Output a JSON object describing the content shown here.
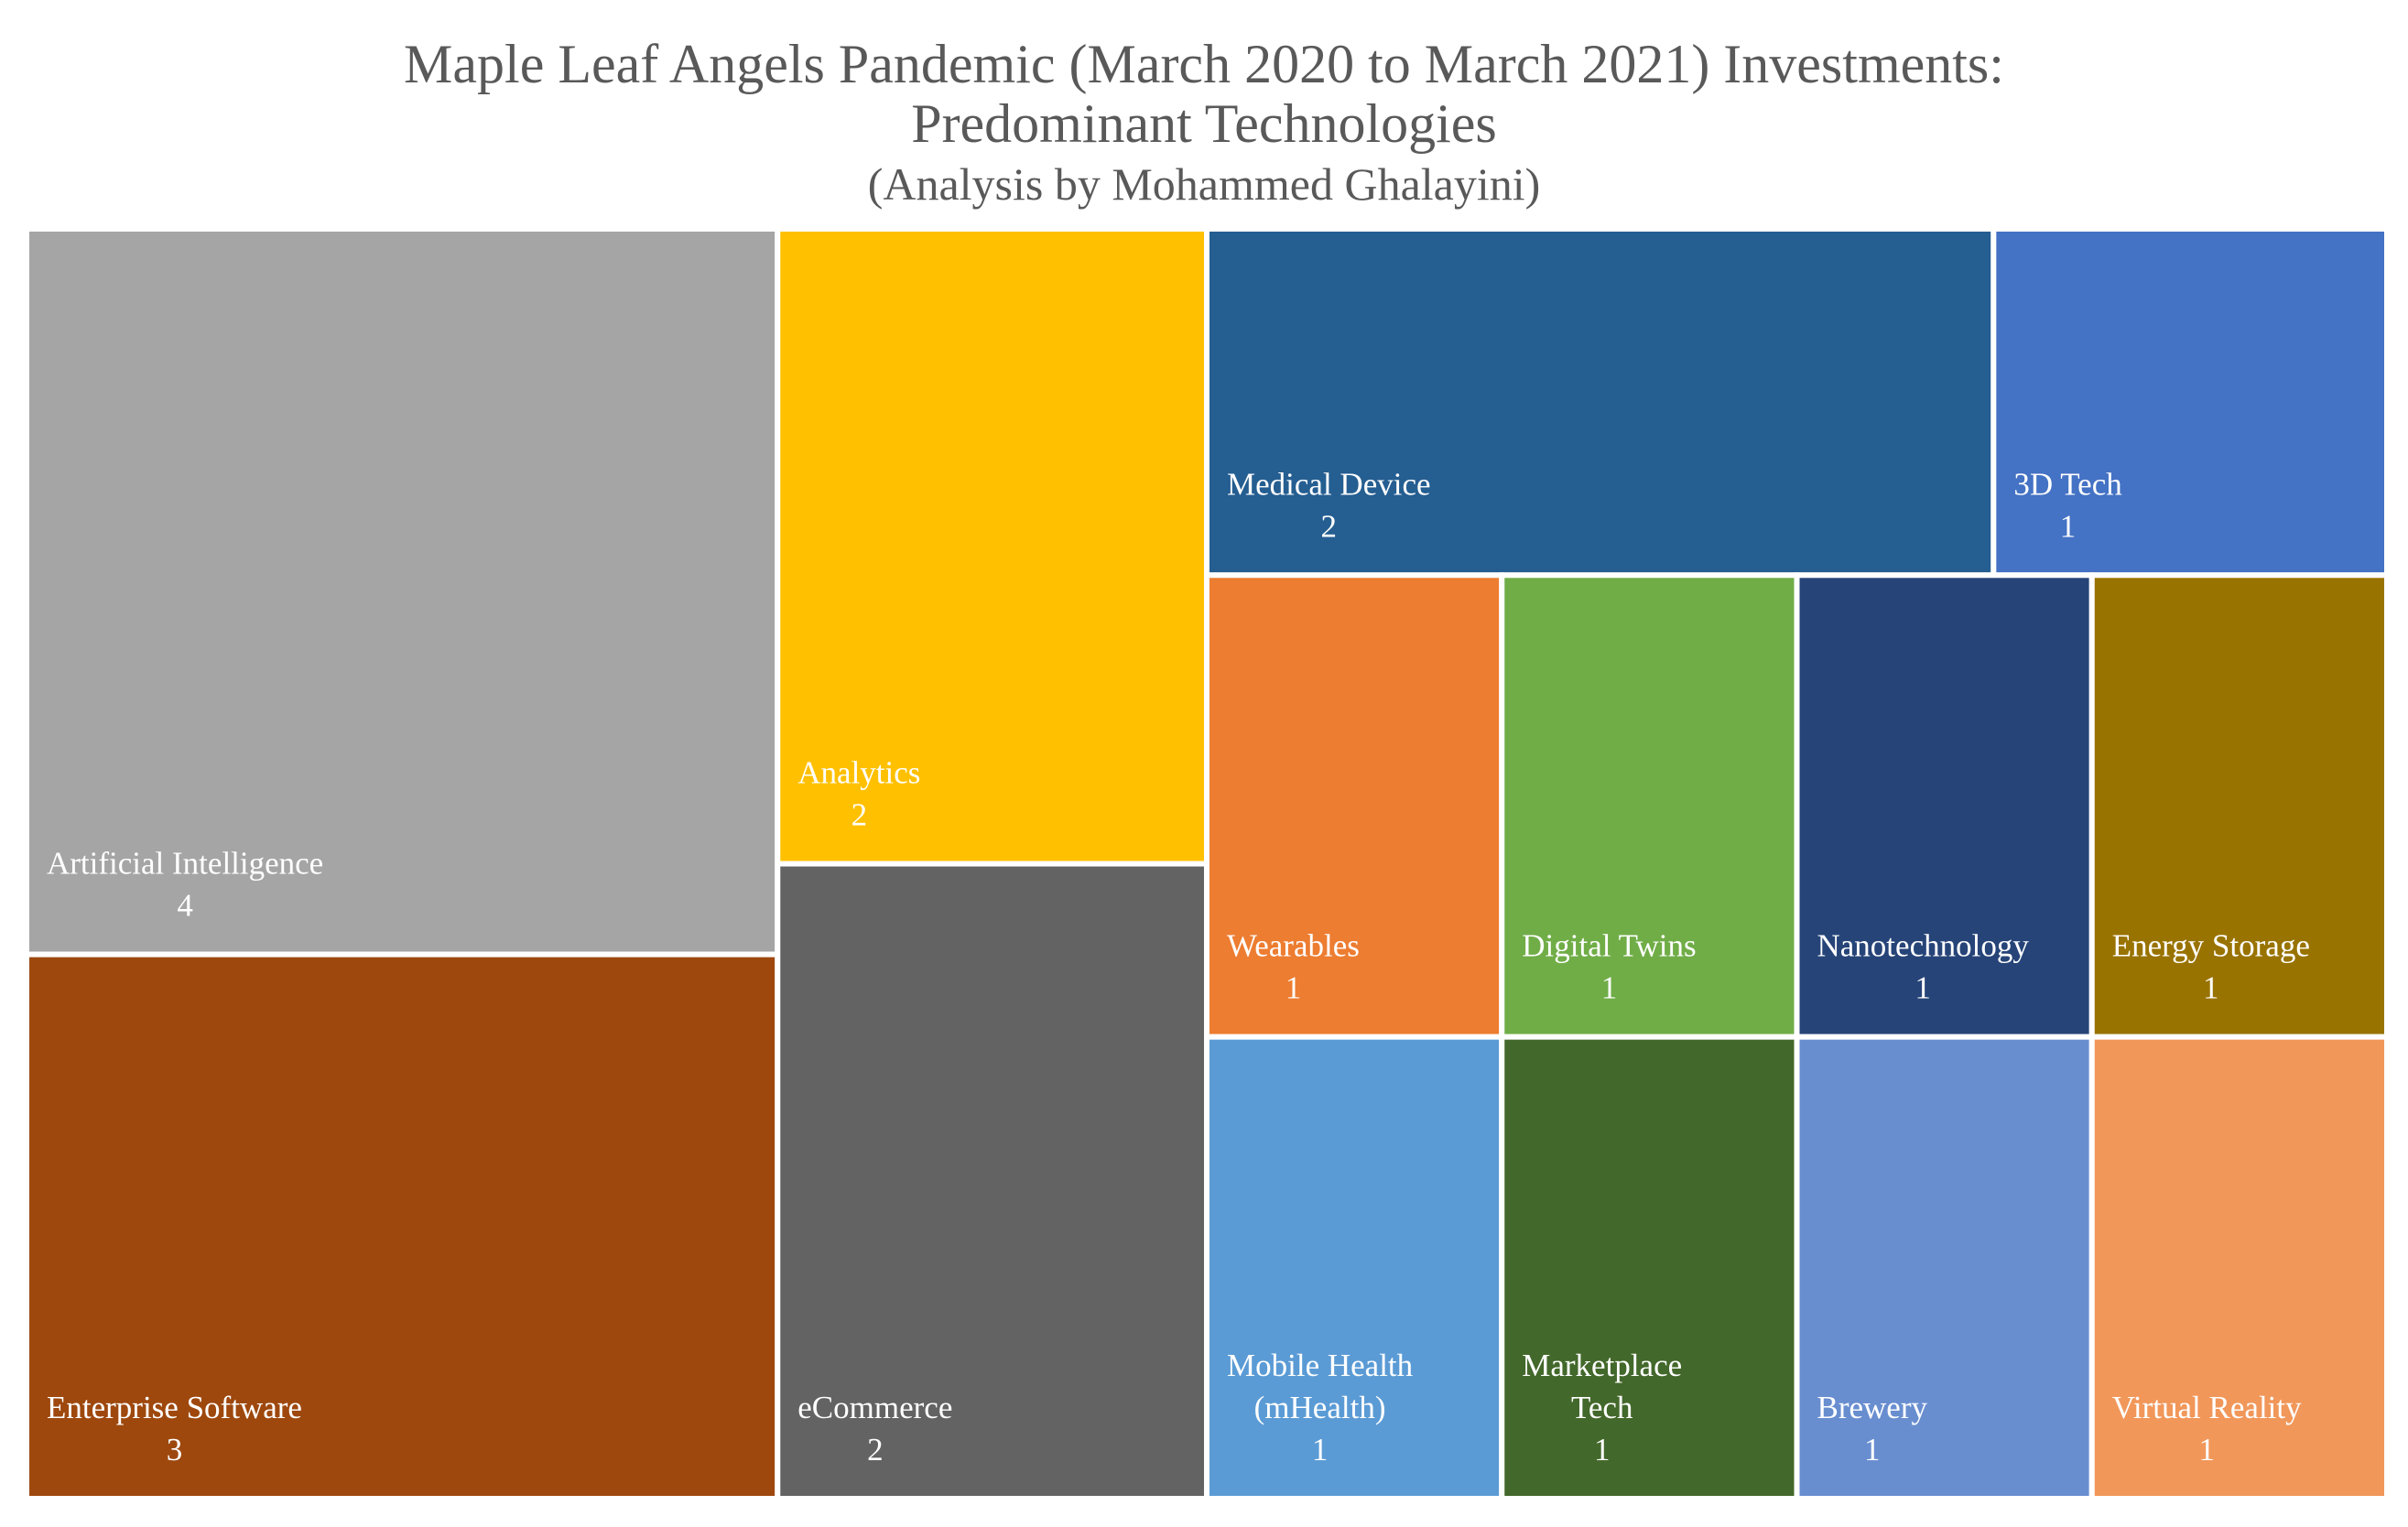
{
  "chart_data": {
    "type": "treemap",
    "title": "Maple Leaf Angels Pandemic (March 2020 to March 2021) Investments:",
    "title_line2": "Predominant Technologies",
    "subtitle": "(Analysis by Mohammed Ghalayini)",
    "items": [
      {
        "label": "Artificial Intelligence",
        "value": 4,
        "color": "#A5A5A5"
      },
      {
        "label": "Enterprise Software",
        "value": 3,
        "color": "#9E480E"
      },
      {
        "label": "Analytics",
        "value": 2,
        "color": "#FFC000"
      },
      {
        "label": "eCommerce",
        "value": 2,
        "color": "#636363"
      },
      {
        "label": "Medical Device",
        "value": 2,
        "color": "#255E91"
      },
      {
        "label": "3D Tech",
        "value": 1,
        "color": "#4472C4"
      },
      {
        "label": "Wearables",
        "value": 1,
        "color": "#ED7D31"
      },
      {
        "label": "Digital Twins",
        "value": 1,
        "color": "#70AD47"
      },
      {
        "label": "Nanotechnology",
        "value": 1,
        "color": "#264478"
      },
      {
        "label": "Energy Storage",
        "value": 1,
        "color": "#997300"
      },
      {
        "label": "Mobile Health (mHealth)",
        "label_lines": [
          "Mobile Health",
          "(mHealth)"
        ],
        "value": 1,
        "color": "#5B9BD5"
      },
      {
        "label": "Marketplace Tech",
        "label_lines": [
          "Marketplace",
          "Tech"
        ],
        "value": 1,
        "color": "#43682B"
      },
      {
        "label": "Brewery",
        "value": 1,
        "color": "#698ED0"
      },
      {
        "label": "Virtual Reality",
        "value": 1,
        "color": "#F1975A"
      }
    ]
  }
}
